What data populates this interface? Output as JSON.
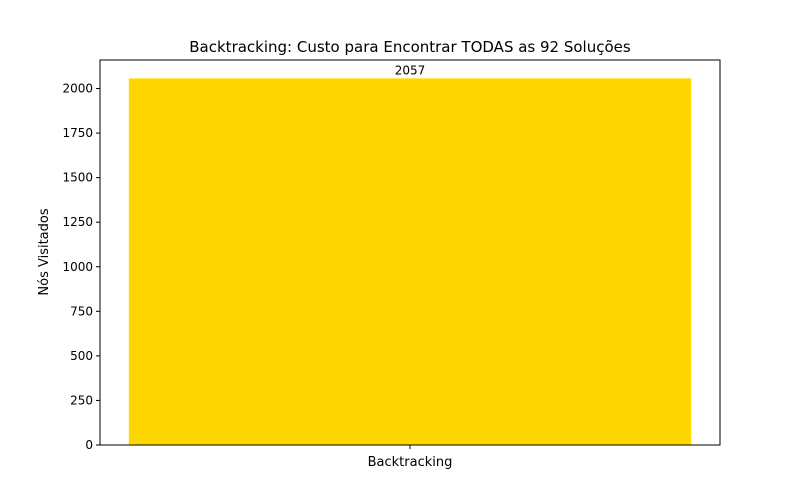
{
  "chart_data": {
    "type": "bar",
    "title": "Backtracking: Custo para Encontrar TODAS as 92 Soluções",
    "xlabel": "",
    "ylabel": "Nós Visitados",
    "categories": [
      "Backtracking"
    ],
    "values": [
      2057
    ],
    "data_labels": [
      "2057"
    ],
    "ylim": [
      0,
      2160
    ],
    "yticks": [
      0,
      250,
      500,
      750,
      1000,
      1250,
      1500,
      1750,
      2000
    ],
    "grid": false,
    "legend": "none",
    "colors": {
      "bar": "#FFD700",
      "axis": "#000000",
      "background": "#FFFFFF"
    }
  }
}
